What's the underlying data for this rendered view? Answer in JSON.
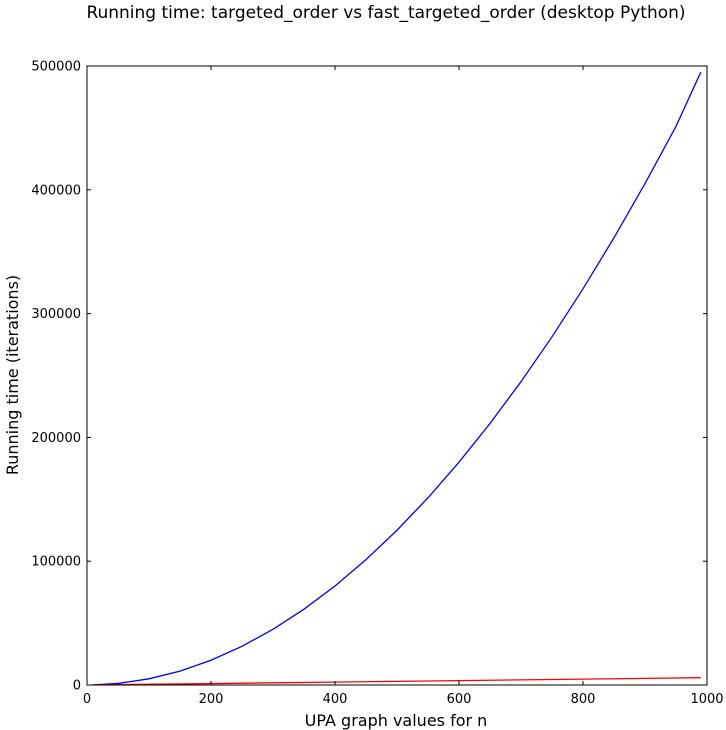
{
  "chart_data": {
    "type": "line",
    "title": "Running time: targeted_order vs fast_targeted_order (desktop Python)",
    "xlabel": "UPA graph values for n",
    "ylabel": "Running time (iterations)",
    "xlim": [
      0,
      1000
    ],
    "ylim": [
      0,
      500000
    ],
    "xticks": [
      0,
      200,
      400,
      600,
      800,
      1000
    ],
    "yticks": [
      0,
      100000,
      200000,
      300000,
      400000,
      500000
    ],
    "grid": false,
    "legend": "none",
    "series": [
      {
        "color": "#0000ff",
        "x": [
          10,
          50,
          100,
          150,
          200,
          250,
          300,
          350,
          400,
          450,
          500,
          550,
          600,
          650,
          700,
          750,
          800,
          850,
          900,
          950,
          990
        ],
        "y": [
          50,
          1250,
          5000,
          11250,
          20000,
          31250,
          45000,
          61250,
          80000,
          101250,
          125000,
          151250,
          180000,
          211250,
          245000,
          281250,
          320000,
          361250,
          405000,
          451250,
          495000
        ]
      },
      {
        "color": "#ff0000",
        "x": [
          10,
          100,
          200,
          300,
          400,
          500,
          600,
          700,
          800,
          900,
          990
        ],
        "y": [
          50,
          550,
          1150,
          1750,
          2350,
          2950,
          3550,
          4150,
          4750,
          5350,
          5900
        ]
      }
    ]
  }
}
